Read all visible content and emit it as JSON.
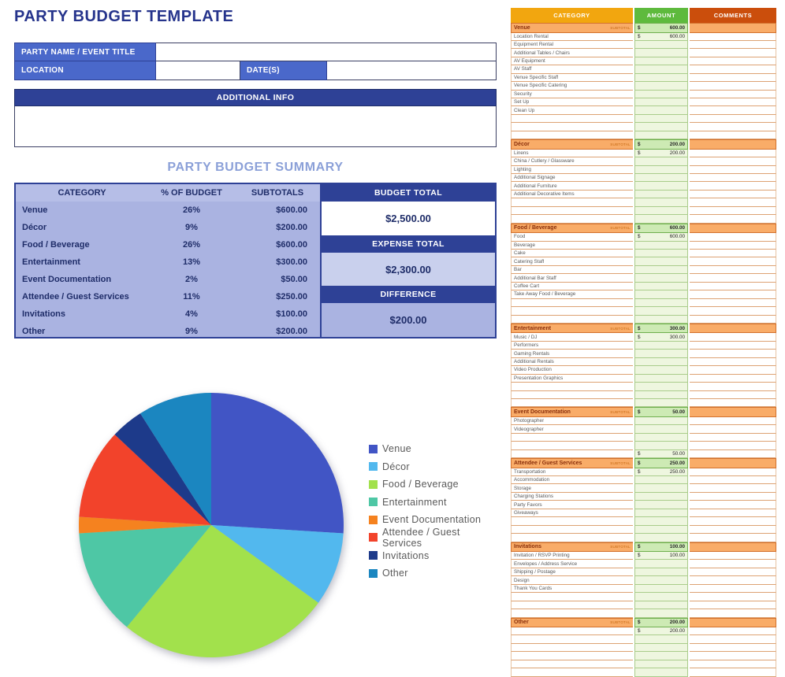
{
  "page": {
    "title": "PARTY BUDGET TEMPLATE"
  },
  "form": {
    "party_name_label": "PARTY NAME / EVENT TITLE",
    "party_name_value": "",
    "location_label": "LOCATION",
    "location_value": "",
    "dates_label": "DATE(S)",
    "dates_value": "",
    "additional_info_label": "ADDITIONAL INFO",
    "additional_info_value": ""
  },
  "summary": {
    "title": "PARTY BUDGET SUMMARY",
    "columns": [
      "CATEGORY",
      "% OF BUDGET",
      "SUBTOTALS"
    ],
    "rows": [
      {
        "category": "Venue",
        "pct": "26%",
        "subtotal": "$600.00"
      },
      {
        "category": "Décor",
        "pct": "9%",
        "subtotal": "$200.00"
      },
      {
        "category": "Food / Beverage",
        "pct": "26%",
        "subtotal": "$600.00"
      },
      {
        "category": "Entertainment",
        "pct": "13%",
        "subtotal": "$300.00"
      },
      {
        "category": "Event Documentation",
        "pct": "2%",
        "subtotal": "$50.00"
      },
      {
        "category": "Attendee / Guest Services",
        "pct": "11%",
        "subtotal": "$250.00"
      },
      {
        "category": "Invitations",
        "pct": "4%",
        "subtotal": "$100.00"
      },
      {
        "category": "Other",
        "pct": "9%",
        "subtotal": "$200.00"
      }
    ],
    "totals": [
      {
        "label": "BUDGET TOTAL",
        "value": "$2,500.00",
        "style": "white"
      },
      {
        "label": "EXPENSE TOTAL",
        "value": "$2,300.00",
        "style": "light"
      },
      {
        "label": "DIFFERENCE",
        "value": "$200.00",
        "style": "medium"
      }
    ]
  },
  "chart_data": {
    "type": "pie",
    "title": "",
    "categories": [
      "Venue",
      "Décor",
      "Food / Beverage",
      "Entertainment",
      "Event Documentation",
      "Attendee / Guest Services",
      "Invitations",
      "Other"
    ],
    "values": [
      26,
      9,
      26,
      13,
      2,
      11,
      4,
      9
    ],
    "unit": "%",
    "colors": [
      "#4155c5",
      "#52b8ee",
      "#a2e14c",
      "#4ec7a5",
      "#f5821f",
      "#f2432b",
      "#1d3a8a",
      "#1b86c0"
    ],
    "start_angle_deg": 0,
    "direction": "clockwise",
    "legend_position": "right"
  },
  "sheet": {
    "columns": [
      "CATEGORY",
      "AMOUNT",
      "COMMENTS"
    ],
    "subtotal_label": "SUBTOTAL",
    "currency_symbol": "$",
    "sections": [
      {
        "name": "Venue",
        "subtotal": "600.00",
        "rows": [
          {
            "label": "Location Rental",
            "amount": "600.00"
          },
          {
            "label": "Equipment Rental",
            "amount": ""
          },
          {
            "label": "Additional Tables / Chairs",
            "amount": ""
          },
          {
            "label": "AV Equipment",
            "amount": ""
          },
          {
            "label": "AV Staff",
            "amount": ""
          },
          {
            "label": "Venue Specific Staff",
            "amount": ""
          },
          {
            "label": "Venue Specific Catering",
            "amount": ""
          },
          {
            "label": "Security",
            "amount": ""
          },
          {
            "label": "Set Up",
            "amount": ""
          },
          {
            "label": "Clean Up",
            "amount": ""
          },
          {
            "label": "",
            "amount": ""
          },
          {
            "label": "",
            "amount": ""
          },
          {
            "label": "",
            "amount": ""
          }
        ]
      },
      {
        "name": "Décor",
        "subtotal": "200.00",
        "rows": [
          {
            "label": "Linens",
            "amount": "200.00"
          },
          {
            "label": "China / Cutlery / Glassware",
            "amount": ""
          },
          {
            "label": "Lighting",
            "amount": ""
          },
          {
            "label": "Additional Signage",
            "amount": ""
          },
          {
            "label": "Additional Furniture",
            "amount": ""
          },
          {
            "label": "Additional Decorative Items",
            "amount": ""
          },
          {
            "label": "",
            "amount": ""
          },
          {
            "label": "",
            "amount": ""
          },
          {
            "label": "",
            "amount": ""
          }
        ]
      },
      {
        "name": "Food / Beverage",
        "subtotal": "600.00",
        "rows": [
          {
            "label": "Food",
            "amount": "600.00"
          },
          {
            "label": "Beverage",
            "amount": ""
          },
          {
            "label": "Cake",
            "amount": ""
          },
          {
            "label": "Catering Staff",
            "amount": ""
          },
          {
            "label": "Bar",
            "amount": ""
          },
          {
            "label": "Additional Bar Staff",
            "amount": ""
          },
          {
            "label": "Coffee Cart",
            "amount": ""
          },
          {
            "label": "Take Away Food / Beverage",
            "amount": ""
          },
          {
            "label": "",
            "amount": ""
          },
          {
            "label": "",
            "amount": ""
          },
          {
            "label": "",
            "amount": ""
          }
        ]
      },
      {
        "name": "Entertainment",
        "subtotal": "300.00",
        "rows": [
          {
            "label": "Music / DJ",
            "amount": "300.00"
          },
          {
            "label": "Performers",
            "amount": ""
          },
          {
            "label": "Gaming Rentals",
            "amount": ""
          },
          {
            "label": "Additional Rentals",
            "amount": ""
          },
          {
            "label": "Video Production",
            "amount": ""
          },
          {
            "label": "Presentation Graphics",
            "amount": ""
          },
          {
            "label": "",
            "amount": ""
          },
          {
            "label": "",
            "amount": ""
          },
          {
            "label": "",
            "amount": ""
          }
        ]
      },
      {
        "name": "Event Documentation",
        "subtotal": "50.00",
        "rows": [
          {
            "label": "Photographer",
            "amount": ""
          },
          {
            "label": "Videographer",
            "amount": ""
          },
          {
            "label": "",
            "amount": ""
          },
          {
            "label": "",
            "amount": ""
          },
          {
            "label": "",
            "amount": "50.00"
          }
        ]
      },
      {
        "name": "Attendee / Guest Services",
        "subtotal": "250.00",
        "rows": [
          {
            "label": "Transportation",
            "amount": "250.00"
          },
          {
            "label": "Accommodation",
            "amount": ""
          },
          {
            "label": "Storage",
            "amount": ""
          },
          {
            "label": "Charging Stations",
            "amount": ""
          },
          {
            "label": "Party Favors",
            "amount": ""
          },
          {
            "label": "Giveaways",
            "amount": ""
          },
          {
            "label": "",
            "amount": ""
          },
          {
            "label": "",
            "amount": ""
          },
          {
            "label": "",
            "amount": ""
          }
        ]
      },
      {
        "name": "Invitations",
        "subtotal": "100.00",
        "rows": [
          {
            "label": "Invitation / RSVP Printing",
            "amount": "100.00"
          },
          {
            "label": "Envelopes / Address Service",
            "amount": ""
          },
          {
            "label": "Shipping / Postage",
            "amount": ""
          },
          {
            "label": "Design",
            "amount": ""
          },
          {
            "label": "Thank You Cards",
            "amount": ""
          },
          {
            "label": "",
            "amount": ""
          },
          {
            "label": "",
            "amount": ""
          },
          {
            "label": "",
            "amount": ""
          }
        ]
      },
      {
        "name": "Other",
        "subtotal": "200.00",
        "rows": [
          {
            "label": "",
            "amount": "200.00"
          },
          {
            "label": "",
            "amount": ""
          },
          {
            "label": "",
            "amount": ""
          },
          {
            "label": "",
            "amount": ""
          },
          {
            "label": "",
            "amount": ""
          },
          {
            "label": "",
            "amount": ""
          },
          {
            "label": "",
            "amount": ""
          },
          {
            "label": "",
            "amount": ""
          }
        ]
      }
    ]
  },
  "colors": {
    "accent_navy": "#2e4196",
    "label_blue": "#4a68ca",
    "summary_bg": "#aab3e1",
    "header_category": "#f2a60f",
    "header_amount": "#5eba3d",
    "header_comments": "#cb4e0c",
    "section_row": "#f9ac68",
    "amount_cell": "#eef6df"
  }
}
